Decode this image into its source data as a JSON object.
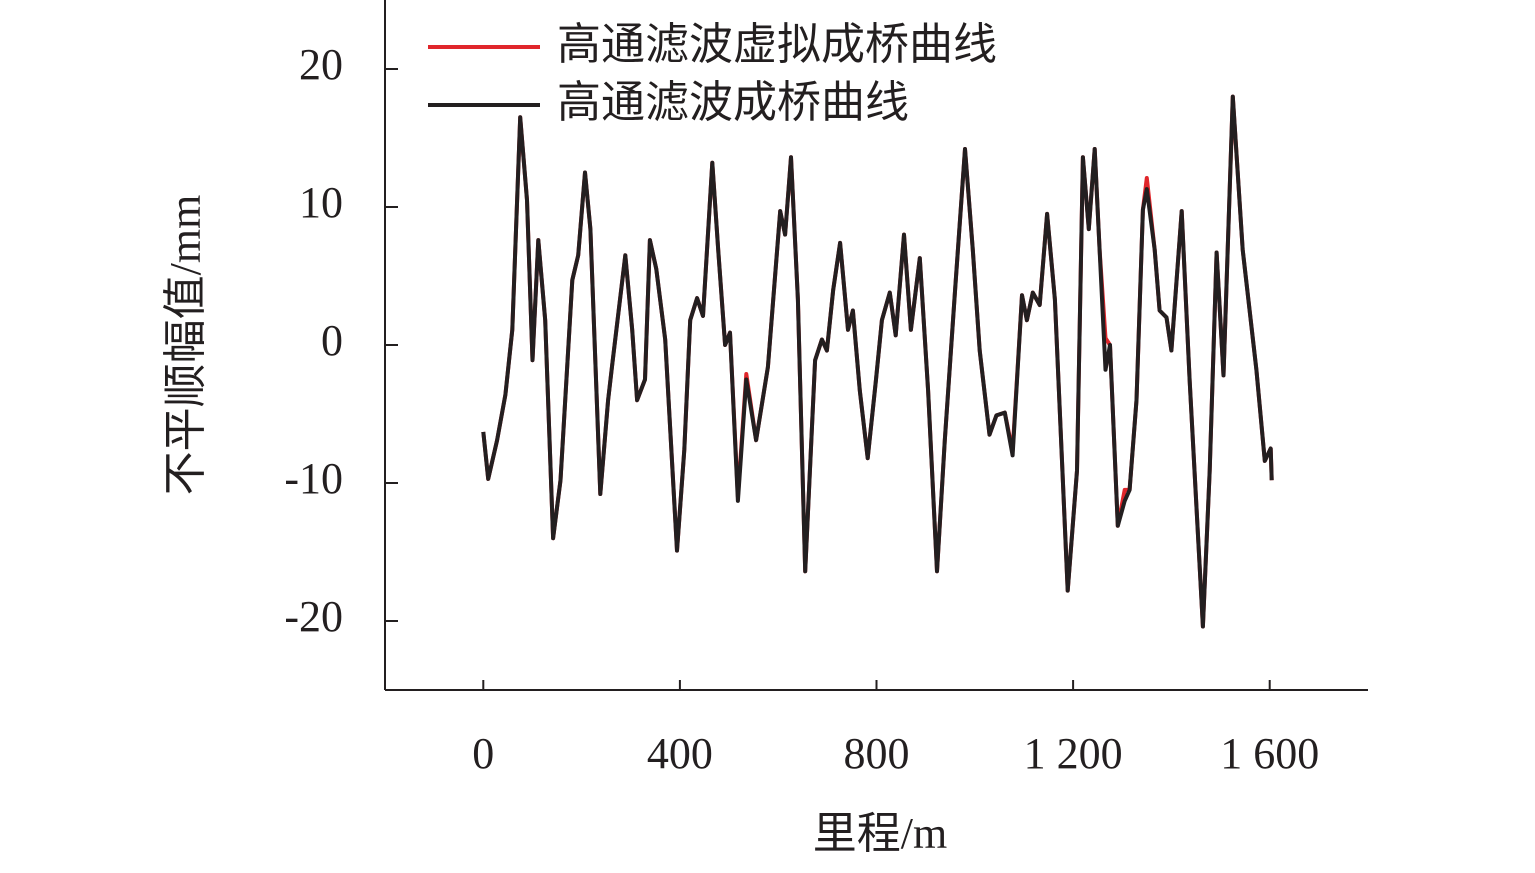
{
  "chart_data": {
    "type": "line",
    "xlabel": "里程/m",
    "ylabel": "不平顺幅值/mm",
    "x": [
      0,
      10,
      28,
      45,
      59,
      75,
      89,
      100,
      112,
      126,
      142,
      157,
      181,
      193,
      207,
      218,
      238,
      254,
      262,
      289,
      303,
      313,
      329,
      339,
      352,
      370,
      394,
      409,
      421,
      435,
      447,
      466,
      478,
      492,
      502,
      518,
      535,
      555,
      579,
      604,
      614,
      626,
      640,
      655,
      675,
      689,
      699,
      712,
      726,
      742,
      752,
      766,
      782,
      799,
      811,
      827,
      839,
      856,
      870,
      888,
      905,
      923,
      939,
      960,
      980,
      996,
      1010,
      1030,
      1044,
      1061,
      1077,
      1096,
      1106,
      1118,
      1132,
      1147,
      1163,
      1189,
      1208,
      1220,
      1232,
      1244,
      1254,
      1266,
      1275,
      1291,
      1305,
      1315,
      1329,
      1342,
      1350,
      1366,
      1376,
      1390,
      1400,
      1421,
      1437,
      1464,
      1478,
      1492,
      1506,
      1525,
      1545,
      1573,
      1590,
      1602,
      1604
    ],
    "series": [
      {
        "name": "高通滤波虚拟成桥曲线",
        "color": "#e0262b",
        "values": [
          -6.3,
          -9.7,
          -6.9,
          -3.6,
          1.1,
          16.5,
          10.5,
          -1.1,
          7.6,
          1.8,
          -14.0,
          -9.8,
          4.7,
          6.5,
          12.5,
          8.4,
          -10.8,
          -4.0,
          -1.5,
          6.5,
          1.1,
          -4.0,
          -2.5,
          7.6,
          5.5,
          0.4,
          -14.9,
          -7.6,
          1.8,
          3.4,
          2.1,
          13.2,
          6.9,
          0,
          0.9,
          -11.0,
          -2.1,
          -6.9,
          -1.6,
          9.7,
          8.0,
          13.6,
          3.3,
          -16.4,
          -1.1,
          0.4,
          -0.4,
          4.0,
          7.4,
          1.1,
          2.5,
          -3.3,
          -8.2,
          -2.5,
          1.8,
          3.8,
          0.7,
          8.0,
          1.1,
          6.3,
          -3.3,
          -16.4,
          -6.9,
          4.0,
          14.2,
          6.9,
          -0.4,
          -6.5,
          -5.1,
          -4.9,
          -7.7,
          3.6,
          1.8,
          3.8,
          2.9,
          9.5,
          3.3,
          -17.8,
          -9.1,
          13.6,
          8.4,
          14.2,
          6.9,
          0.5,
          0,
          -13.1,
          -10.5,
          -10.5,
          -4.0,
          9.8,
          12.1,
          6.9,
          2.5,
          2.0,
          -0.4,
          9.7,
          -2.5,
          -20.4,
          -9.1,
          6.7,
          -2.2,
          18.0,
          6.9,
          -1.8,
          -8.4,
          -7.5,
          -9.8
        ]
      },
      {
        "name": "高通滤波成桥曲线",
        "color": "#231f20",
        "values": [
          -6.3,
          -9.7,
          -6.9,
          -3.6,
          1.1,
          16.5,
          10.5,
          -1.1,
          7.6,
          1.8,
          -14.0,
          -9.8,
          4.7,
          6.5,
          12.5,
          8.4,
          -10.8,
          -4.0,
          -1.5,
          6.5,
          1.1,
          -4.0,
          -2.5,
          7.6,
          5.5,
          0.4,
          -14.9,
          -7.6,
          1.8,
          3.4,
          2.1,
          13.2,
          6.9,
          0,
          0.9,
          -11.3,
          -2.5,
          -6.9,
          -1.6,
          9.7,
          8.0,
          13.6,
          3.3,
          -16.4,
          -1.1,
          0.4,
          -0.4,
          4.0,
          7.4,
          1.1,
          2.5,
          -3.3,
          -8.2,
          -2.5,
          1.8,
          3.8,
          0.7,
          8.0,
          1.1,
          6.3,
          -3.3,
          -16.4,
          -6.9,
          4.0,
          14.2,
          6.9,
          -0.4,
          -6.5,
          -5.1,
          -4.9,
          -8.0,
          3.6,
          1.8,
          3.8,
          2.9,
          9.5,
          3.3,
          -17.8,
          -9.1,
          13.6,
          8.4,
          14.2,
          6.9,
          -1.8,
          0,
          -13.1,
          -11.3,
          -10.5,
          -4.0,
          9.8,
          11.3,
          6.9,
          2.5,
          2.0,
          -0.4,
          9.7,
          -2.5,
          -20.4,
          -9.1,
          6.7,
          -2.2,
          18.0,
          6.9,
          -1.8,
          -8.4,
          -7.5,
          -9.8
        ]
      }
    ],
    "xlim": [
      -200,
      1800
    ],
    "ylim": [
      -25,
      25
    ],
    "xticks": [
      0,
      400,
      800,
      {
        "value": 1200,
        "label": "1 200"
      },
      {
        "value": 1600,
        "label": "1 600"
      }
    ],
    "yticks": [
      -20,
      -10,
      0,
      10,
      20
    ],
    "legend": "upper left"
  }
}
